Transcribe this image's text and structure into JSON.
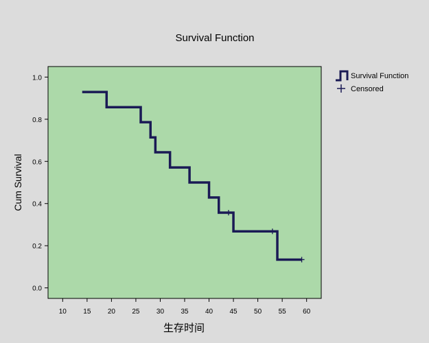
{
  "chart_data": {
    "type": "line",
    "subtype": "kaplan-meier-step",
    "title": "Survival Function",
    "xlabel": "生存时间",
    "ylabel": "Cum Survival",
    "xlim": [
      7,
      63
    ],
    "ylim": [
      -0.05,
      1.05
    ],
    "xticks": [
      10,
      15,
      20,
      25,
      30,
      35,
      40,
      45,
      50,
      55,
      60
    ],
    "yticks": [
      0.0,
      0.2,
      0.4,
      0.6,
      0.8,
      1.0
    ],
    "ytick_labels": [
      "0.0",
      "0.2",
      "0.4",
      "0.6",
      "0.8",
      "1.0"
    ],
    "grid": false,
    "legend_position": "top-right-outside",
    "plot_background": "#acd9a9",
    "series": [
      {
        "name": "Survival Function",
        "color": "#1a1a55",
        "step_x": [
          14,
          19,
          26,
          28,
          29,
          32,
          36,
          40,
          42,
          45,
          54,
          59
        ],
        "step_y": [
          0.929,
          0.857,
          0.786,
          0.714,
          0.643,
          0.571,
          0.5,
          0.429,
          0.357,
          0.268,
          0.134,
          0.134
        ]
      }
    ],
    "censored": {
      "name": "Censored",
      "x": [
        44,
        53,
        59
      ],
      "y": [
        0.357,
        0.268,
        0.134
      ]
    },
    "legend": [
      {
        "label": "Survival Function",
        "symbol": "step"
      },
      {
        "label": "Censored",
        "symbol": "plus"
      }
    ]
  }
}
